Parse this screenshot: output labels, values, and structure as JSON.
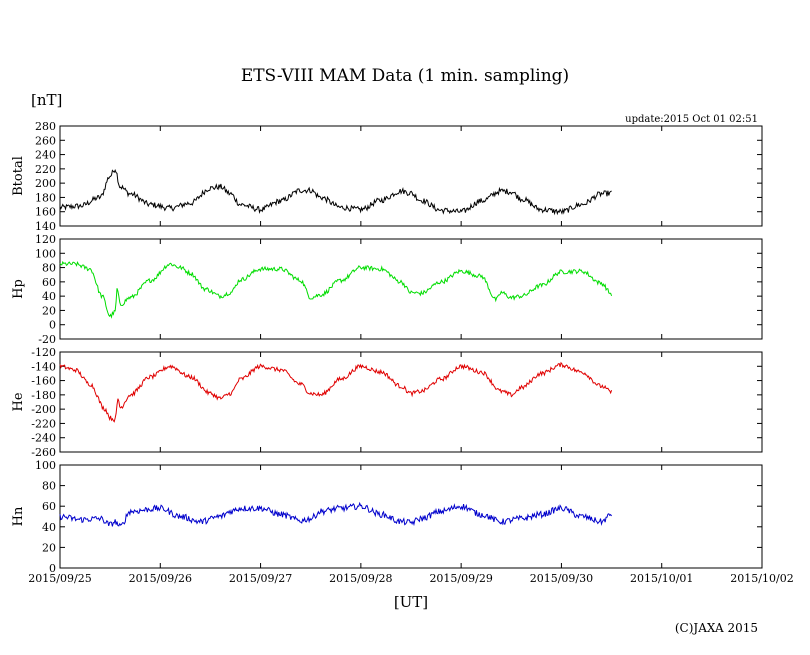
{
  "header": {
    "title": "ETS-VIII MAM Data (1 min. sampling)",
    "unit_label": "[nT]",
    "update": "update:2015 Oct 01 02:51",
    "x_unit": "[UT]",
    "copyright": "(C)JAXA 2015"
  },
  "colors": {
    "Btotal": "#000000",
    "Hp": "#00dd00",
    "He": "#e00000",
    "Hn": "#0000cc"
  },
  "chart_data": {
    "type": "line",
    "x_axis": {
      "label": "[UT]",
      "range_days": [
        0,
        7
      ],
      "ticks": [
        "2015/09/25",
        "2015/09/26",
        "2015/09/27",
        "2015/09/28",
        "2015/09/29",
        "2015/09/30",
        "2015/10/01",
        "2015/10/02"
      ]
    },
    "panels": [
      {
        "name": "Btotal",
        "ylabel": "Btotal",
        "ylim": [
          140,
          280
        ],
        "yticks": [
          140,
          160,
          180,
          200,
          220,
          240,
          260,
          280
        ],
        "x": [
          0,
          0.2,
          0.4,
          0.5,
          0.55,
          0.6,
          0.7,
          0.9,
          1.1,
          1.3,
          1.5,
          1.6,
          1.7,
          1.8,
          2.0,
          2.2,
          2.4,
          2.5,
          2.6,
          2.8,
          3.0,
          3.2,
          3.4,
          3.5,
          3.6,
          3.8,
          4.0,
          4.2,
          4.4,
          4.5,
          4.6,
          4.8,
          5.0,
          5.2,
          5.4,
          5.5
        ],
        "values": [
          166,
          168,
          180,
          210,
          220,
          195,
          185,
          170,
          165,
          172,
          193,
          195,
          185,
          170,
          163,
          175,
          190,
          190,
          180,
          166,
          163,
          176,
          189,
          186,
          176,
          162,
          160,
          175,
          189,
          188,
          178,
          163,
          160,
          170,
          185,
          186
        ],
        "noise": 4
      },
      {
        "name": "Hp",
        "ylabel": "Hp",
        "ylim": [
          -20,
          120
        ],
        "yticks": [
          -20,
          0,
          20,
          40,
          60,
          80,
          100,
          120
        ],
        "x": [
          0,
          0.15,
          0.3,
          0.42,
          0.5,
          0.55,
          0.57,
          0.6,
          0.7,
          0.9,
          1.1,
          1.2,
          1.3,
          1.45,
          1.6,
          1.7,
          1.8,
          2.0,
          2.2,
          2.4,
          2.5,
          2.6,
          2.8,
          3.0,
          3.2,
          3.4,
          3.5,
          3.6,
          3.8,
          4.0,
          4.2,
          4.35,
          4.4,
          4.5,
          4.6,
          4.8,
          5.0,
          5.2,
          5.4,
          5.5
        ],
        "values": [
          85,
          85,
          78,
          40,
          12,
          18,
          50,
          28,
          38,
          62,
          85,
          80,
          72,
          50,
          40,
          45,
          63,
          78,
          78,
          62,
          38,
          42,
          62,
          80,
          78,
          60,
          45,
          44,
          60,
          75,
          68,
          35,
          45,
          38,
          40,
          55,
          74,
          75,
          58,
          43
        ],
        "noise": 3
      },
      {
        "name": "He",
        "ylabel": "He",
        "ylim": [
          -260,
          -120
        ],
        "yticks": [
          -260,
          -240,
          -220,
          -200,
          -180,
          -160,
          -140,
          -120
        ],
        "x": [
          0,
          0.15,
          0.3,
          0.45,
          0.5,
          0.55,
          0.58,
          0.6,
          0.7,
          0.9,
          1.1,
          1.3,
          1.5,
          1.6,
          1.7,
          1.8,
          2.0,
          2.2,
          2.4,
          2.5,
          2.6,
          2.8,
          3.0,
          3.2,
          3.4,
          3.5,
          3.6,
          3.8,
          4.0,
          4.2,
          4.4,
          4.5,
          4.6,
          4.8,
          5.0,
          5.2,
          5.4,
          5.5
        ],
        "values": [
          -140,
          -145,
          -165,
          -200,
          -212,
          -215,
          -185,
          -198,
          -180,
          -155,
          -140,
          -155,
          -178,
          -185,
          -178,
          -158,
          -140,
          -145,
          -165,
          -178,
          -180,
          -158,
          -140,
          -148,
          -168,
          -178,
          -175,
          -158,
          -140,
          -148,
          -175,
          -180,
          -170,
          -150,
          -138,
          -148,
          -168,
          -176
        ],
        "noise": 3
      },
      {
        "name": "Hn",
        "ylabel": "Hn",
        "ylim": [
          0,
          100
        ],
        "yticks": [
          0,
          20,
          40,
          60,
          80,
          100
        ],
        "x": [
          0,
          0.2,
          0.4,
          0.5,
          0.55,
          0.6,
          0.7,
          1.0,
          1.2,
          1.4,
          1.6,
          1.7,
          1.8,
          2.0,
          2.2,
          2.4,
          2.5,
          2.6,
          2.8,
          3.0,
          3.2,
          3.4,
          3.5,
          3.6,
          3.8,
          4.0,
          4.2,
          4.4,
          4.6,
          4.8,
          5.0,
          5.2,
          5.4,
          5.5
        ],
        "values": [
          50,
          47,
          48,
          42,
          45,
          40,
          55,
          58,
          50,
          45,
          50,
          55,
          58,
          58,
          52,
          46,
          48,
          55,
          58,
          60,
          52,
          45,
          44,
          48,
          55,
          60,
          52,
          45,
          48,
          52,
          58,
          50,
          45,
          52
        ],
        "noise": 3
      }
    ]
  }
}
